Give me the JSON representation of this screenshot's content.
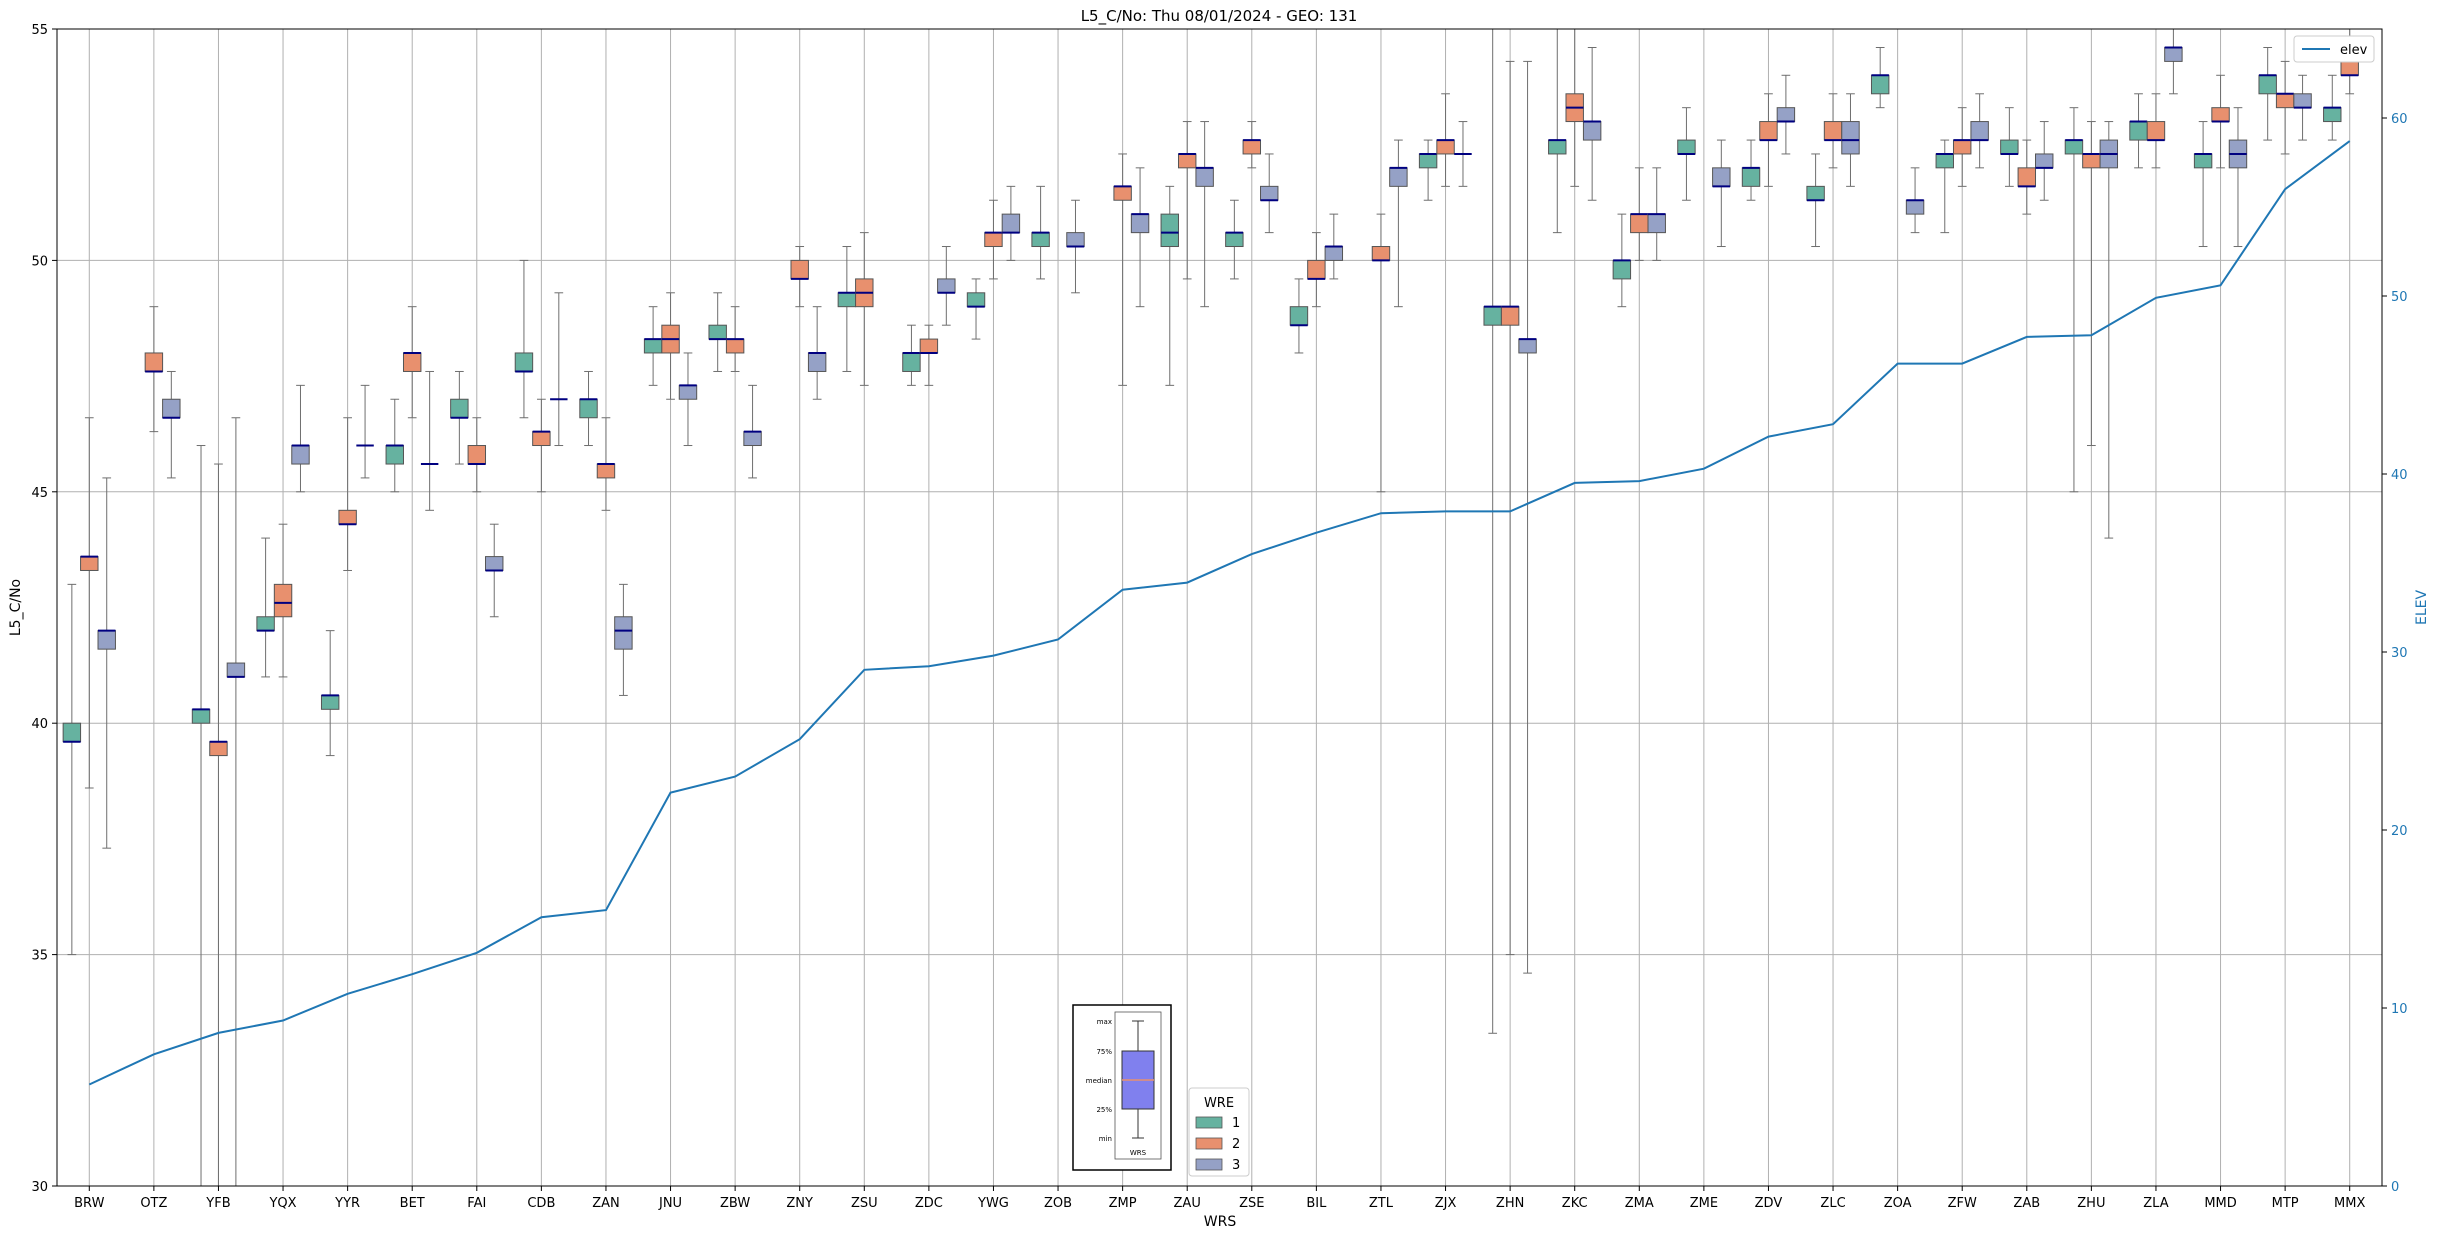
{
  "chart_data": {
    "type": "box",
    "title": "L5_C/No: Thu 08/01/2024 - GEO: 131",
    "xlabel": "WRS",
    "ylabel": "L5_C/No",
    "ylabel_right": "ELEV",
    "ylim": [
      30,
      55
    ],
    "ylim_right": [
      0,
      65
    ],
    "yticks": [
      "30",
      "35",
      "40",
      "45",
      "50",
      "55"
    ],
    "yticks_right": [
      "0",
      "10",
      "20",
      "30",
      "40",
      "50",
      "60"
    ],
    "grid": true,
    "categories": [
      "BRW",
      "OTZ",
      "YFB",
      "YQX",
      "YYR",
      "BET",
      "FAI",
      "CDB",
      "ZAN",
      "JNU",
      "ZBW",
      "ZNY",
      "ZSU",
      "ZDC",
      "YWG",
      "ZOB",
      "ZMP",
      "ZAU",
      "ZSE",
      "BIL",
      "ZTL",
      "ZJX",
      "ZHN",
      "ZKC",
      "ZMA",
      "ZME",
      "ZDV",
      "ZLC",
      "ZOA",
      "ZFW",
      "ZAB",
      "ZHU",
      "ZLA",
      "MMD",
      "MTP",
      "MMX"
    ],
    "wre_legend": {
      "title": "WRE",
      "items": [
        {
          "label": "1",
          "color": "#66b2a0"
        },
        {
          "label": "2",
          "color": "#e8906e"
        },
        {
          "label": "3",
          "color": "#95a1c6"
        }
      ]
    },
    "elev_legend": {
      "label": "elev",
      "color": "#1f77b4"
    },
    "key": {
      "labels": [
        "max",
        "75%",
        "median",
        "25%",
        "min"
      ],
      "caption": "WRS",
      "box_color": "#8080ee",
      "median_color": "#e8906e"
    },
    "series": [
      {
        "name": "1",
        "color": "#66b2a0",
        "boxes": [
          {
            "cat": "BRW",
            "min": 35.0,
            "q1": 39.6,
            "med": 39.6,
            "q3": 40.0,
            "max": 43.0
          },
          {
            "cat": "YFB",
            "min": 30.0,
            "q1": 40.0,
            "med": 40.3,
            "q3": 40.3,
            "max": 46.0
          },
          {
            "cat": "YQX",
            "min": 41.0,
            "q1": 42.0,
            "med": 42.0,
            "q3": 42.3,
            "max": 44.0
          },
          {
            "cat": "YYR",
            "min": 39.3,
            "q1": 40.3,
            "med": 40.6,
            "q3": 40.6,
            "max": 42.0
          },
          {
            "cat": "BET",
            "min": 45.0,
            "q1": 45.6,
            "med": 46.0,
            "q3": 46.0,
            "max": 47.0
          },
          {
            "cat": "FAI",
            "min": 45.6,
            "q1": 46.6,
            "med": 46.6,
            "q3": 47.0,
            "max": 47.6
          },
          {
            "cat": "CDB",
            "min": 46.6,
            "q1": 47.6,
            "med": 47.6,
            "q3": 48.0,
            "max": 50.0
          },
          {
            "cat": "ZAN",
            "min": 46.0,
            "q1": 46.6,
            "med": 47.0,
            "q3": 47.0,
            "max": 47.6
          },
          {
            "cat": "JNU",
            "min": 47.3,
            "q1": 48.0,
            "med": 48.3,
            "q3": 48.3,
            "max": 49.0
          },
          {
            "cat": "ZBW",
            "min": 47.6,
            "q1": 48.3,
            "med": 48.3,
            "q3": 48.6,
            "max": 49.3
          },
          {
            "cat": "ZSU",
            "min": 47.6,
            "q1": 49.0,
            "med": 49.3,
            "q3": 49.3,
            "max": 50.3
          },
          {
            "cat": "ZDC",
            "min": 47.3,
            "q1": 47.6,
            "med": 48.0,
            "q3": 48.0,
            "max": 48.6
          },
          {
            "cat": "YWG",
            "min": 48.3,
            "q1": 49.0,
            "med": 49.0,
            "q3": 49.3,
            "max": 49.6
          },
          {
            "cat": "ZOB",
            "min": 49.6,
            "q1": 50.3,
            "med": 50.6,
            "q3": 50.6,
            "max": 51.6
          },
          {
            "cat": "ZAU",
            "min": 47.3,
            "q1": 50.3,
            "med": 50.6,
            "q3": 51.0,
            "max": 51.6
          },
          {
            "cat": "ZSE",
            "min": 49.6,
            "q1": 50.3,
            "med": 50.6,
            "q3": 50.6,
            "max": 51.3
          },
          {
            "cat": "BIL",
            "min": 48.0,
            "q1": 48.6,
            "med": 48.6,
            "q3": 49.0,
            "max": 49.6
          },
          {
            "cat": "ZJX",
            "min": 51.3,
            "q1": 52.0,
            "med": 52.3,
            "q3": 52.3,
            "max": 52.6
          },
          {
            "cat": "ZHN",
            "min": 33.3,
            "q1": 48.6,
            "med": 49.0,
            "q3": 49.0,
            "max": 55.0
          },
          {
            "cat": "ZKC",
            "min": 50.6,
            "q1": 52.3,
            "med": 52.6,
            "q3": 52.6,
            "max": 55.0
          },
          {
            "cat": "ZMA",
            "min": 49.0,
            "q1": 49.6,
            "med": 50.0,
            "q3": 50.0,
            "max": 51.0
          },
          {
            "cat": "ZME",
            "min": 51.3,
            "q1": 52.3,
            "med": 52.3,
            "q3": 52.6,
            "max": 53.3
          },
          {
            "cat": "ZDV",
            "min": 51.3,
            "q1": 51.6,
            "med": 52.0,
            "q3": 52.0,
            "max": 52.6
          },
          {
            "cat": "ZLC",
            "min": 50.3,
            "q1": 51.3,
            "med": 51.3,
            "q3": 51.6,
            "max": 52.3
          },
          {
            "cat": "ZOA",
            "min": 53.3,
            "q1": 53.6,
            "med": 54.0,
            "q3": 54.0,
            "max": 54.6
          },
          {
            "cat": "ZFW",
            "min": 50.6,
            "q1": 52.0,
            "med": 52.3,
            "q3": 52.3,
            "max": 52.6
          },
          {
            "cat": "ZAB",
            "min": 51.6,
            "q1": 52.3,
            "med": 52.3,
            "q3": 52.6,
            "max": 53.3
          },
          {
            "cat": "ZHU",
            "min": 45.0,
            "q1": 52.3,
            "med": 52.6,
            "q3": 52.6,
            "max": 53.3
          },
          {
            "cat": "ZLA",
            "min": 52.0,
            "q1": 52.6,
            "med": 53.0,
            "q3": 53.0,
            "max": 53.6
          },
          {
            "cat": "MMD",
            "min": 50.3,
            "q1": 52.0,
            "med": 52.3,
            "q3": 52.3,
            "max": 53.0
          },
          {
            "cat": "MTP",
            "min": 52.6,
            "q1": 53.6,
            "med": 54.0,
            "q3": 54.0,
            "max": 54.6
          },
          {
            "cat": "MMX",
            "min": 52.6,
            "q1": 53.0,
            "med": 53.3,
            "q3": 53.3,
            "max": 54.0
          }
        ]
      },
      {
        "name": "2",
        "color": "#e8906e",
        "boxes": [
          {
            "cat": "BRW",
            "min": 38.6,
            "q1": 43.3,
            "med": 43.6,
            "q3": 43.6,
            "max": 46.6
          },
          {
            "cat": "OTZ",
            "min": 46.3,
            "q1": 47.6,
            "med": 47.6,
            "q3": 48.0,
            "max": 49.0
          },
          {
            "cat": "YFB",
            "min": 30.0,
            "q1": 39.3,
            "med": 39.6,
            "q3": 39.6,
            "max": 45.6
          },
          {
            "cat": "YQX",
            "min": 41.0,
            "q1": 42.3,
            "med": 42.6,
            "q3": 43.0,
            "max": 44.3
          },
          {
            "cat": "YYR",
            "min": 43.3,
            "q1": 44.3,
            "med": 44.3,
            "q3": 44.6,
            "max": 46.6
          },
          {
            "cat": "BET",
            "min": 46.6,
            "q1": 47.6,
            "med": 48.0,
            "q3": 48.0,
            "max": 49.0
          },
          {
            "cat": "FAI",
            "min": 45.0,
            "q1": 45.6,
            "med": 45.6,
            "q3": 46.0,
            "max": 46.6
          },
          {
            "cat": "CDB",
            "min": 45.0,
            "q1": 46.0,
            "med": 46.3,
            "q3": 46.3,
            "max": 47.0
          },
          {
            "cat": "ZAN",
            "min": 44.6,
            "q1": 45.3,
            "med": 45.6,
            "q3": 45.6,
            "max": 46.6
          },
          {
            "cat": "JNU",
            "min": 47.0,
            "q1": 48.0,
            "med": 48.3,
            "q3": 48.6,
            "max": 49.3
          },
          {
            "cat": "ZBW",
            "min": 47.6,
            "q1": 48.0,
            "med": 48.3,
            "q3": 48.3,
            "max": 49.0
          },
          {
            "cat": "ZNY",
            "min": 49.0,
            "q1": 49.6,
            "med": 49.6,
            "q3": 50.0,
            "max": 50.3
          },
          {
            "cat": "ZSU",
            "min": 47.3,
            "q1": 49.0,
            "med": 49.3,
            "q3": 49.6,
            "max": 50.6
          },
          {
            "cat": "ZDC",
            "min": 47.3,
            "q1": 48.0,
            "med": 48.0,
            "q3": 48.3,
            "max": 48.6
          },
          {
            "cat": "YWG",
            "min": 49.6,
            "q1": 50.3,
            "med": 50.6,
            "q3": 50.6,
            "max": 51.3
          },
          {
            "cat": "ZMP",
            "min": 47.3,
            "q1": 51.3,
            "med": 51.6,
            "q3": 51.6,
            "max": 52.3
          },
          {
            "cat": "ZAU",
            "min": 49.6,
            "q1": 52.0,
            "med": 52.3,
            "q3": 52.3,
            "max": 53.0
          },
          {
            "cat": "ZSE",
            "min": 52.0,
            "q1": 52.3,
            "med": 52.6,
            "q3": 52.6,
            "max": 53.0
          },
          {
            "cat": "BIL",
            "min": 49.0,
            "q1": 49.6,
            "med": 49.6,
            "q3": 50.0,
            "max": 50.6
          },
          {
            "cat": "ZTL",
            "min": 45.0,
            "q1": 50.0,
            "med": 50.0,
            "q3": 50.3,
            "max": 51.0
          },
          {
            "cat": "ZJX",
            "min": 51.6,
            "q1": 52.3,
            "med": 52.6,
            "q3": 52.6,
            "max": 53.6
          },
          {
            "cat": "ZHN",
            "min": 35.0,
            "q1": 48.6,
            "med": 49.0,
            "q3": 49.0,
            "max": 54.3
          },
          {
            "cat": "ZKC",
            "min": 51.6,
            "q1": 53.0,
            "med": 53.3,
            "q3": 53.6,
            "max": 55.0
          },
          {
            "cat": "ZMA",
            "min": 50.0,
            "q1": 50.6,
            "med": 51.0,
            "q3": 51.0,
            "max": 52.0
          },
          {
            "cat": "ZDV",
            "min": 51.6,
            "q1": 52.6,
            "med": 52.6,
            "q3": 53.0,
            "max": 53.6
          },
          {
            "cat": "ZLC",
            "min": 52.0,
            "q1": 52.6,
            "med": 52.6,
            "q3": 53.0,
            "max": 53.6
          },
          {
            "cat": "ZFW",
            "min": 51.6,
            "q1": 52.3,
            "med": 52.6,
            "q3": 52.6,
            "max": 53.3
          },
          {
            "cat": "ZAB",
            "min": 51.0,
            "q1": 51.6,
            "med": 51.6,
            "q3": 52.0,
            "max": 52.6
          },
          {
            "cat": "ZHU",
            "min": 46.0,
            "q1": 52.0,
            "med": 52.3,
            "q3": 52.3,
            "max": 53.0
          },
          {
            "cat": "ZLA",
            "min": 52.0,
            "q1": 52.6,
            "med": 52.6,
            "q3": 53.0,
            "max": 53.6
          },
          {
            "cat": "MMD",
            "min": 52.0,
            "q1": 53.0,
            "med": 53.0,
            "q3": 53.3,
            "max": 54.0
          },
          {
            "cat": "MTP",
            "min": 52.3,
            "q1": 53.3,
            "med": 53.6,
            "q3": 53.6,
            "max": 54.3
          },
          {
            "cat": "MMX",
            "min": 53.6,
            "q1": 54.0,
            "med": 54.0,
            "q3": 54.3,
            "max": 55.0
          }
        ]
      },
      {
        "name": "3",
        "color": "#95a1c6",
        "boxes": [
          {
            "cat": "BRW",
            "min": 37.3,
            "q1": 41.6,
            "med": 42.0,
            "q3": 42.0,
            "max": 45.3
          },
          {
            "cat": "OTZ",
            "min": 45.3,
            "q1": 46.6,
            "med": 46.6,
            "q3": 47.0,
            "max": 47.6
          },
          {
            "cat": "YFB",
            "min": 30.0,
            "q1": 41.0,
            "med": 41.0,
            "q3": 41.3,
            "max": 46.6
          },
          {
            "cat": "YQX",
            "min": 45.0,
            "q1": 45.6,
            "med": 46.0,
            "q3": 46.0,
            "max": 47.3
          },
          {
            "cat": "YYR",
            "min": 45.3,
            "q1": 46.0,
            "med": 46.0,
            "q3": 46.0,
            "max": 47.3
          },
          {
            "cat": "BET",
            "min": 44.6,
            "q1": 45.6,
            "med": 45.6,
            "q3": 45.6,
            "max": 47.6
          },
          {
            "cat": "FAI",
            "min": 42.3,
            "q1": 43.3,
            "med": 43.3,
            "q3": 43.6,
            "max": 44.3
          },
          {
            "cat": "CDB",
            "min": 46.0,
            "q1": 47.0,
            "med": 47.0,
            "q3": 47.0,
            "max": 49.3
          },
          {
            "cat": "ZAN",
            "min": 40.6,
            "q1": 41.6,
            "med": 42.0,
            "q3": 42.3,
            "max": 43.0
          },
          {
            "cat": "JNU",
            "min": 46.0,
            "q1": 47.0,
            "med": 47.3,
            "q3": 47.3,
            "max": 48.0
          },
          {
            "cat": "ZBW",
            "min": 45.3,
            "q1": 46.0,
            "med": 46.3,
            "q3": 46.3,
            "max": 47.3
          },
          {
            "cat": "ZNY",
            "min": 47.0,
            "q1": 47.6,
            "med": 48.0,
            "q3": 48.0,
            "max": 49.0
          },
          {
            "cat": "ZDC",
            "min": 48.6,
            "q1": 49.3,
            "med": 49.3,
            "q3": 49.6,
            "max": 50.3
          },
          {
            "cat": "YWG",
            "min": 50.0,
            "q1": 50.6,
            "med": 50.6,
            "q3": 51.0,
            "max": 51.6
          },
          {
            "cat": "ZOB",
            "min": 49.3,
            "q1": 50.3,
            "med": 50.3,
            "q3": 50.6,
            "max": 51.3
          },
          {
            "cat": "ZMP",
            "min": 49.0,
            "q1": 50.6,
            "med": 51.0,
            "q3": 51.0,
            "max": 52.0
          },
          {
            "cat": "ZAU",
            "min": 49.0,
            "q1": 51.6,
            "med": 52.0,
            "q3": 52.0,
            "max": 53.0
          },
          {
            "cat": "ZSE",
            "min": 50.6,
            "q1": 51.3,
            "med": 51.3,
            "q3": 51.6,
            "max": 52.3
          },
          {
            "cat": "BIL",
            "min": 49.6,
            "q1": 50.0,
            "med": 50.3,
            "q3": 50.3,
            "max": 51.0
          },
          {
            "cat": "ZTL",
            "min": 49.0,
            "q1": 51.6,
            "med": 52.0,
            "q3": 52.0,
            "max": 52.6
          },
          {
            "cat": "ZJX",
            "min": 51.6,
            "q1": 52.3,
            "med": 52.3,
            "q3": 52.3,
            "max": 53.0
          },
          {
            "cat": "ZHN",
            "min": 34.6,
            "q1": 48.0,
            "med": 48.3,
            "q3": 48.3,
            "max": 54.3
          },
          {
            "cat": "ZKC",
            "min": 51.3,
            "q1": 52.6,
            "med": 53.0,
            "q3": 53.0,
            "max": 54.6
          },
          {
            "cat": "ZMA",
            "min": 50.0,
            "q1": 50.6,
            "med": 51.0,
            "q3": 51.0,
            "max": 52.0
          },
          {
            "cat": "ZME",
            "min": 50.3,
            "q1": 51.6,
            "med": 51.6,
            "q3": 52.0,
            "max": 52.6
          },
          {
            "cat": "ZDV",
            "min": 52.3,
            "q1": 53.0,
            "med": 53.0,
            "q3": 53.3,
            "max": 54.0
          },
          {
            "cat": "ZLC",
            "min": 51.6,
            "q1": 52.3,
            "med": 52.6,
            "q3": 53.0,
            "max": 53.6
          },
          {
            "cat": "ZOA",
            "min": 50.6,
            "q1": 51.0,
            "med": 51.3,
            "q3": 51.3,
            "max": 52.0
          },
          {
            "cat": "ZFW",
            "min": 52.0,
            "q1": 52.6,
            "med": 52.6,
            "q3": 53.0,
            "max": 53.6
          },
          {
            "cat": "ZAB",
            "min": 51.3,
            "q1": 52.0,
            "med": 52.0,
            "q3": 52.3,
            "max": 53.0
          },
          {
            "cat": "ZHU",
            "min": 44.0,
            "q1": 52.0,
            "med": 52.3,
            "q3": 52.6,
            "max": 53.0
          },
          {
            "cat": "ZLA",
            "min": 53.6,
            "q1": 54.3,
            "med": 54.6,
            "q3": 54.6,
            "max": 55.0
          },
          {
            "cat": "MMD",
            "min": 50.3,
            "q1": 52.0,
            "med": 52.3,
            "q3": 52.6,
            "max": 53.3
          },
          {
            "cat": "MTP",
            "min": 52.6,
            "q1": 53.3,
            "med": 53.3,
            "q3": 53.6,
            "max": 54.0
          }
        ]
      }
    ],
    "elev": {
      "name": "elev",
      "color": "#1f77b4",
      "values": [
        5.7,
        7.4,
        8.6,
        9.3,
        10.8,
        11.9,
        13.1,
        15.1,
        15.5,
        22.1,
        23.0,
        25.1,
        29.0,
        29.2,
        29.8,
        30.7,
        33.5,
        33.9,
        35.5,
        36.7,
        37.8,
        37.9,
        37.9,
        39.5,
        39.6,
        40.3,
        42.1,
        42.8,
        46.2,
        46.2,
        47.7,
        47.8,
        49.9,
        50.6,
        56.0,
        58.7
      ]
    }
  }
}
